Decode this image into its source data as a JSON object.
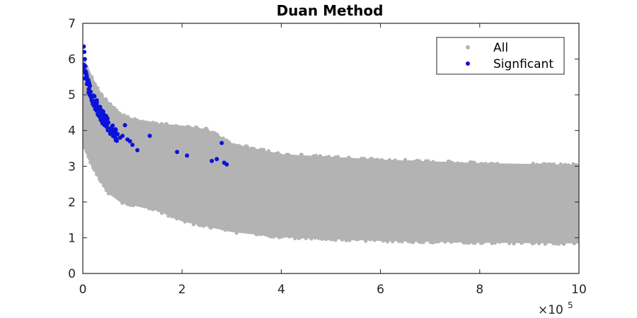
{
  "chart_data": {
    "type": "scatter",
    "title": "Duan Method",
    "xlabel": "",
    "ylabel": "",
    "xlim": [
      0,
      1000000
    ],
    "ylim": [
      0,
      7
    ],
    "x_ticks": [
      0,
      200000,
      400000,
      600000,
      800000,
      1000000
    ],
    "x_tick_labels": [
      "0",
      "2",
      "4",
      "6",
      "8",
      "10"
    ],
    "x_exponent_label": "×10",
    "x_exponent_power": "5",
    "y_ticks": [
      0,
      1,
      2,
      3,
      4,
      5,
      6,
      7
    ],
    "y_tick_labels": [
      "0",
      "1",
      "2",
      "3",
      "4",
      "5",
      "6",
      "7"
    ],
    "grid": false,
    "legend_position": "top-right",
    "series": [
      {
        "name": "All",
        "color": "#b3b3b3",
        "marker": "dot",
        "description_of_extent": "dense band",
        "lower_envelope": [
          [
            0,
            3.7
          ],
          [
            20000,
            3.0
          ],
          [
            50000,
            2.3
          ],
          [
            80000,
            2.0
          ],
          [
            150000,
            1.8
          ],
          [
            200000,
            1.5
          ],
          [
            300000,
            1.2
          ],
          [
            400000,
            1.05
          ],
          [
            600000,
            0.95
          ],
          [
            800000,
            0.9
          ],
          [
            1000000,
            0.88
          ]
        ],
        "upper_envelope": [
          [
            0,
            6.0
          ],
          [
            20000,
            5.4
          ],
          [
            40000,
            4.9
          ],
          [
            80000,
            4.4
          ],
          [
            120000,
            4.2
          ],
          [
            200000,
            4.1
          ],
          [
            250000,
            4.0
          ],
          [
            300000,
            3.6
          ],
          [
            400000,
            3.3
          ],
          [
            600000,
            3.15
          ],
          [
            800000,
            3.05
          ],
          [
            1000000,
            3.0
          ]
        ]
      },
      {
        "name": "Signficant",
        "color": "#0b12d9",
        "marker": "dot",
        "x": [
          2000,
          3000,
          4000,
          5000,
          6000,
          8000,
          10000,
          12000,
          14000,
          16000,
          18000,
          20000,
          22000,
          25000,
          28000,
          30000,
          33000,
          36000,
          40000,
          44000,
          48000,
          52000,
          56000,
          60000,
          65000,
          70000,
          75000,
          80000,
          85000,
          90000,
          95000,
          100000,
          110000,
          135000,
          190000,
          210000,
          260000,
          270000,
          280000,
          285000,
          290000
        ],
        "y": [
          6.35,
          6.2,
          6.0,
          5.8,
          5.6,
          5.45,
          5.3,
          5.15,
          5.0,
          4.95,
          4.85,
          4.75,
          4.7,
          4.6,
          4.55,
          4.45,
          4.4,
          4.3,
          4.2,
          4.15,
          4.1,
          4.0,
          3.95,
          3.9,
          3.85,
          3.9,
          3.8,
          3.85,
          4.15,
          3.75,
          3.7,
          3.6,
          3.45,
          3.85,
          3.4,
          3.3,
          3.15,
          3.2,
          3.65,
          3.1,
          3.05
        ]
      }
    ]
  }
}
